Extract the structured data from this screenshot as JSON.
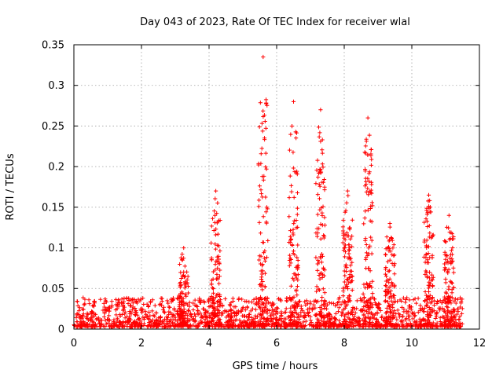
{
  "chart_data": {
    "type": "scatter",
    "title": "Day 043 of 2023, Rate Of TEC Index for receiver wlal",
    "xlabel": "GPS time / hours",
    "ylabel": "ROTI / TECUs",
    "xlim": [
      0,
      12
    ],
    "ylim": [
      0,
      0.35
    ],
    "xticks": [
      0,
      2,
      4,
      6,
      8,
      10,
      12
    ],
    "yticks": [
      0,
      0.05,
      0.1,
      0.15,
      0.2,
      0.25,
      0.3,
      0.35
    ],
    "xtick_labels": [
      "0",
      "2",
      "4",
      "6",
      "8",
      "10",
      "12"
    ],
    "ytick_labels": [
      "0",
      "0.05",
      "0.1",
      "0.15",
      "0.2",
      "0.25",
      "0.3",
      "0.35"
    ],
    "grid": true,
    "marker": "+",
    "marker_color": "#ff0000",
    "data_range_hours": [
      0,
      11.5
    ],
    "background": {
      "baseline": 0.01,
      "spread": 0.03
    },
    "bursts": [
      {
        "x": 3.25,
        "peak": 0.1
      },
      {
        "x": 4.2,
        "peak": 0.17
      },
      {
        "x": 5.6,
        "peak": 0.335
      },
      {
        "x": 6.5,
        "peak": 0.28
      },
      {
        "x": 7.3,
        "peak": 0.27
      },
      {
        "x": 8.1,
        "peak": 0.17
      },
      {
        "x": 8.7,
        "peak": 0.26
      },
      {
        "x": 9.35,
        "peak": 0.13
      },
      {
        "x": 10.5,
        "peak": 0.165
      },
      {
        "x": 11.1,
        "peak": 0.14
      }
    ]
  }
}
